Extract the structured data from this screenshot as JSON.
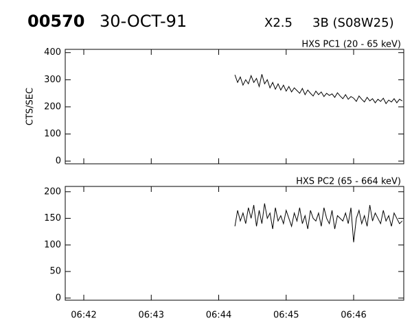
{
  "header": {
    "event": "00570",
    "date": "30-OCT-91",
    "class": "X2.5",
    "flare": "3B (S08W25)"
  },
  "chart_data": [
    {
      "type": "line",
      "title": "HXS PC1 (20 - 65 keV)",
      "y_label": "CTS/SEC",
      "color": "#000000",
      "xlim": [
        41.725,
        46.743
      ],
      "ylim": [
        -10,
        412
      ],
      "yticks": [
        0,
        100,
        200,
        300,
        400
      ],
      "x": [
        44.24,
        44.28,
        44.32,
        44.36,
        44.4,
        44.44,
        44.48,
        44.52,
        44.56,
        44.6,
        44.64,
        44.68,
        44.72,
        44.76,
        44.8,
        44.84,
        44.88,
        44.92,
        44.96,
        45,
        45.04,
        45.08,
        45.12,
        45.16,
        45.2,
        45.24,
        45.28,
        45.32,
        45.36,
        45.4,
        45.44,
        45.48,
        45.52,
        45.56,
        45.6,
        45.64,
        45.68,
        45.72,
        45.76,
        45.8,
        45.84,
        45.88,
        45.92,
        45.96,
        46,
        46.04,
        46.08,
        46.12,
        46.16,
        46.2,
        46.24,
        46.28,
        46.32,
        46.36,
        46.4,
        46.44,
        46.48,
        46.52,
        46.56,
        46.6,
        46.64,
        46.68,
        46.72
      ],
      "values": [
        318,
        290,
        310,
        280,
        300,
        285,
        315,
        290,
        305,
        275,
        320,
        285,
        300,
        270,
        290,
        265,
        285,
        262,
        280,
        258,
        275,
        255,
        270,
        260,
        250,
        268,
        245,
        262,
        250,
        240,
        258,
        245,
        255,
        238,
        250,
        242,
        248,
        235,
        252,
        240,
        230,
        245,
        228,
        238,
        232,
        220,
        240,
        228,
        218,
        235,
        222,
        230,
        215,
        228,
        220,
        232,
        212,
        225,
        218,
        230,
        215,
        228,
        222
      ]
    },
    {
      "type": "line",
      "title": "HXS PC2 (65 - 664 keV)",
      "color": "#000000",
      "xlim": [
        41.725,
        46.743
      ],
      "ylim": [
        -4,
        210
      ],
      "yticks": [
        0,
        50,
        100,
        150,
        200
      ],
      "xticks": [
        {
          "value": 42,
          "label": "06:42"
        },
        {
          "value": 43,
          "label": "06:43"
        },
        {
          "value": 44,
          "label": "06:44"
        },
        {
          "value": 45,
          "label": "06:45"
        },
        {
          "value": 46,
          "label": "06:46"
        }
      ],
      "x": [
        44.24,
        44.28,
        44.32,
        44.36,
        44.4,
        44.44,
        44.48,
        44.52,
        44.56,
        44.6,
        44.64,
        44.68,
        44.72,
        44.76,
        44.8,
        44.84,
        44.88,
        44.92,
        44.96,
        45,
        45.04,
        45.08,
        45.12,
        45.16,
        45.2,
        45.24,
        45.28,
        45.32,
        45.36,
        45.4,
        45.44,
        45.48,
        45.52,
        45.56,
        45.6,
        45.64,
        45.68,
        45.72,
        45.76,
        45.8,
        45.84,
        45.88,
        45.92,
        45.96,
        46,
        46.04,
        46.08,
        46.12,
        46.16,
        46.2,
        46.24,
        46.28,
        46.32,
        46.36,
        46.4,
        46.44,
        46.48,
        46.52,
        46.56,
        46.6,
        46.64,
        46.68,
        46.72
      ],
      "values": [
        135,
        165,
        145,
        160,
        140,
        170,
        150,
        175,
        135,
        165,
        140,
        178,
        150,
        160,
        130,
        170,
        145,
        155,
        140,
        165,
        150,
        135,
        160,
        145,
        170,
        140,
        155,
        130,
        165,
        150,
        145,
        160,
        135,
        170,
        150,
        140,
        165,
        130,
        155,
        150,
        145,
        160,
        140,
        170,
        105,
        150,
        165,
        140,
        155,
        135,
        175,
        145,
        160,
        150,
        140,
        165,
        145,
        155,
        135,
        160,
        150,
        140,
        145
      ]
    }
  ]
}
